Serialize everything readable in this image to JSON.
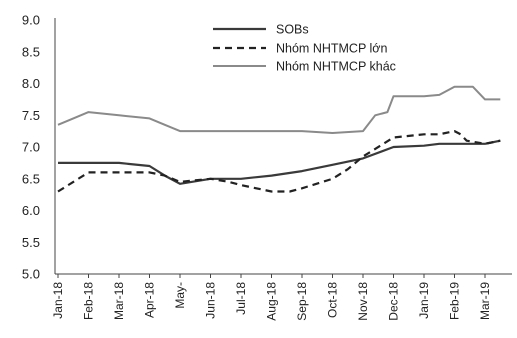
{
  "chart_data": {
    "type": "line",
    "title": "",
    "xlabel": "",
    "ylabel": "",
    "ylim": [
      5.0,
      9.0
    ],
    "yticks": [
      "9.0",
      "8.5",
      "8.0",
      "7.5",
      "7.0",
      "6.5",
      "6.0",
      "5.5",
      "5.0"
    ],
    "categories": [
      "Jan-18",
      "Feb-18",
      "Mar-18",
      "Apr-18",
      "May-",
      "Jun-18",
      "Jul-18",
      "Aug-18",
      "Sep-18",
      "Oct-18",
      "Nov-18",
      "Dec-18",
      "Jan-19",
      "Feb-19",
      "Mar-19"
    ],
    "grid": false,
    "legend_position": "top-right",
    "series": [
      {
        "name": "SOBs",
        "style": "solid-dark",
        "color": "#3a3a3a",
        "points": [
          [
            0,
            6.75
          ],
          [
            1,
            6.75
          ],
          [
            2,
            6.75
          ],
          [
            3,
            6.7
          ],
          [
            3.5,
            6.55
          ],
          [
            4,
            6.42
          ],
          [
            5,
            6.5
          ],
          [
            6,
            6.5
          ],
          [
            7,
            6.55
          ],
          [
            8,
            6.62
          ],
          [
            9,
            6.72
          ],
          [
            10,
            6.82
          ],
          [
            11,
            7.0
          ],
          [
            12,
            7.02
          ],
          [
            12.5,
            7.05
          ],
          [
            13,
            7.05
          ],
          [
            14,
            7.05
          ],
          [
            14.5,
            7.1
          ]
        ]
      },
      {
        "name": "Nhóm NHTMCP lớn",
        "style": "dashed",
        "color": "#222222",
        "points": [
          [
            0,
            6.3
          ],
          [
            0.5,
            6.45
          ],
          [
            1,
            6.6
          ],
          [
            2,
            6.6
          ],
          [
            3,
            6.6
          ],
          [
            3.5,
            6.55
          ],
          [
            4,
            6.45
          ],
          [
            5,
            6.5
          ],
          [
            5.6,
            6.45
          ],
          [
            6,
            6.4
          ],
          [
            7,
            6.3
          ],
          [
            7.6,
            6.3
          ],
          [
            8,
            6.35
          ],
          [
            9,
            6.5
          ],
          [
            9.5,
            6.65
          ],
          [
            10,
            6.85
          ],
          [
            11,
            7.15
          ],
          [
            12,
            7.2
          ],
          [
            12.5,
            7.2
          ],
          [
            13,
            7.25
          ],
          [
            13.2,
            7.2
          ],
          [
            13.4,
            7.1
          ],
          [
            14,
            7.05
          ],
          [
            14.5,
            7.1
          ]
        ]
      },
      {
        "name": "Nhóm NHTMCP khác",
        "style": "solid-light",
        "color": "#8a8a8a",
        "points": [
          [
            0,
            7.35
          ],
          [
            0.5,
            7.45
          ],
          [
            1,
            7.55
          ],
          [
            2,
            7.5
          ],
          [
            3,
            7.45
          ],
          [
            3.5,
            7.35
          ],
          [
            4,
            7.25
          ],
          [
            5,
            7.25
          ],
          [
            6,
            7.25
          ],
          [
            7,
            7.25
          ],
          [
            8,
            7.25
          ],
          [
            9,
            7.22
          ],
          [
            10,
            7.25
          ],
          [
            10.4,
            7.5
          ],
          [
            10.8,
            7.55
          ],
          [
            11,
            7.8
          ],
          [
            12,
            7.8
          ],
          [
            12.5,
            7.82
          ],
          [
            13,
            7.95
          ],
          [
            13.6,
            7.95
          ],
          [
            14,
            7.75
          ],
          [
            14.5,
            7.75
          ]
        ]
      }
    ]
  }
}
